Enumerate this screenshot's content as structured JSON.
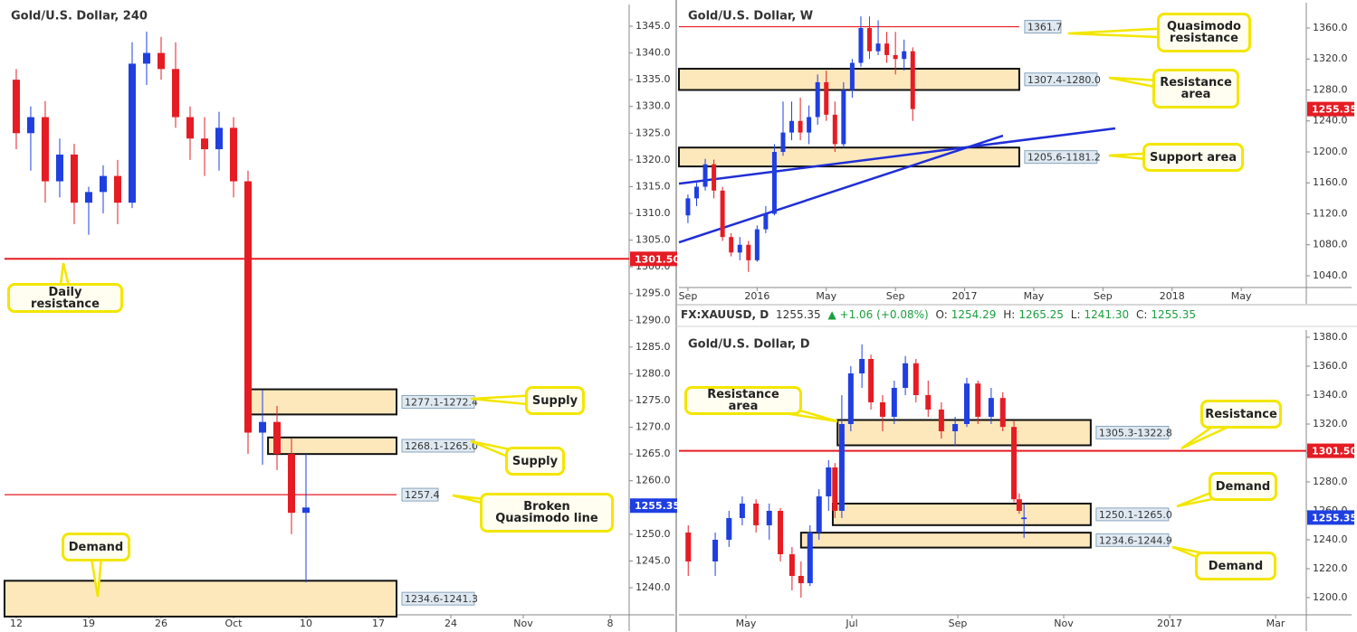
{
  "chart_data": [
    {
      "type": "candlestick",
      "title": "Gold/U.S. Dollar, 240",
      "up_color": "#1f3fe0",
      "down_color": "#e51c23",
      "xlim": [
        -0.81,
        42.31
      ],
      "ylim": [
        1234.93,
        1349.06
      ],
      "xticks": [
        {
          "value": 0,
          "label": "12"
        },
        {
          "value": 5,
          "label": "19"
        },
        {
          "value": 10,
          "label": "26"
        },
        {
          "value": 15,
          "label": "Oct"
        },
        {
          "value": 20,
          "label": "10"
        },
        {
          "value": 25,
          "label": "17"
        },
        {
          "value": 30,
          "label": "24"
        },
        {
          "value": 35,
          "label": "Nov"
        },
        {
          "value": 41,
          "label": "8"
        }
      ],
      "yticks": [
        {
          "value": 1240,
          "label": "1240.0"
        },
        {
          "value": 1245,
          "label": "1245.0"
        },
        {
          "value": 1250,
          "label": "1250.0"
        },
        {
          "value": 1255,
          "label": "1255.0"
        },
        {
          "value": 1260,
          "label": "1260.0"
        },
        {
          "value": 1265,
          "label": "1265.0"
        },
        {
          "value": 1270,
          "label": "1270.0"
        },
        {
          "value": 1275,
          "label": "1275.0"
        },
        {
          "value": 1280,
          "label": "1280.0"
        },
        {
          "value": 1285,
          "label": "1285.0"
        },
        {
          "value": 1290,
          "label": "1290.0"
        },
        {
          "value": 1295,
          "label": "1295.0"
        },
        {
          "value": 1300,
          "label": "1300.0"
        },
        {
          "value": 1305,
          "label": "1305.0"
        },
        {
          "value": 1310,
          "label": "1310.0"
        },
        {
          "value": 1315,
          "label": "1315.0"
        },
        {
          "value": 1320,
          "label": "1320.0"
        },
        {
          "value": 1325,
          "label": "1325.0"
        },
        {
          "value": 1330,
          "label": "1330.0"
        },
        {
          "value": 1335,
          "label": "1335.0"
        },
        {
          "value": 1340,
          "label": "1340.0"
        },
        {
          "value": 1345,
          "label": "1345.0"
        }
      ],
      "x": [
        0,
        1,
        2,
        3,
        4,
        5,
        6,
        7,
        8,
        9,
        10,
        11,
        12,
        13,
        14,
        15,
        16,
        17,
        18,
        19,
        20
      ],
      "open": [
        1335,
        1325,
        1328,
        1316,
        1321,
        1312,
        1314,
        1317,
        1312,
        1338,
        1340,
        1337,
        1328,
        1324,
        1322,
        1326,
        1316,
        1269,
        1271,
        1265,
        1254
      ],
      "high": [
        1337,
        1330,
        1331,
        1324,
        1323,
        1315,
        1319,
        1320,
        1342,
        1344,
        1343,
        1342,
        1330,
        1328,
        1329,
        1328,
        1318,
        1277,
        1274,
        1268,
        1265
      ],
      "low": [
        1322,
        1318,
        1312,
        1313,
        1308,
        1306,
        1310,
        1308,
        1311,
        1334,
        1335,
        1326,
        1320,
        1317,
        1318,
        1313,
        1265,
        1263,
        1262,
        1250,
        1241
      ],
      "close": [
        1325,
        1328,
        1316,
        1321,
        1312,
        1314,
        1317,
        1312,
        1338,
        1340,
        1337,
        1328,
        1324,
        1322,
        1326,
        1316,
        1269,
        1271,
        1265,
        1254,
        1255
      ],
      "zones": [
        {
          "label": "1277.1-1272.4",
          "high": 1277.1,
          "low": 1272.4,
          "x": [
            16.19,
            26.25
          ]
        },
        {
          "label": "1268.1-1265.0",
          "high": 1268.1,
          "low": 1265,
          "x": [
            17.38,
            26.25
          ]
        },
        {
          "label": "1234.6-1241.3",
          "high": 1241.3,
          "low": 1234.6,
          "x": [
            -0.81,
            26.25
          ]
        }
      ],
      "levels": [
        {
          "value": 1301.5,
          "label": "1301.50",
          "color": "#e51c23",
          "style": "axis"
        },
        {
          "value": 1257.4,
          "label": "1257.4",
          "color": "#e51c23",
          "style": "box",
          "x_end": 26.25
        }
      ],
      "last_price": 1255.35,
      "last_price_color": "#1f3fe0",
      "callouts": [
        "Daily resistance",
        "Supply",
        "Supply",
        "Broken Quasimodo line",
        "Demand"
      ]
    },
    {
      "type": "candlestick",
      "title": "Gold/U.S. Dollar, W",
      "up_color": "#1f3fe0",
      "down_color": "#e51c23",
      "xlim": [
        -0.52,
        35.76
      ],
      "ylim": [
        1024.8,
        1392.7
      ],
      "xticks": [
        {
          "value": 0,
          "label": "Sep"
        },
        {
          "value": 4,
          "label": "2016"
        },
        {
          "value": 8,
          "label": "May"
        },
        {
          "value": 12,
          "label": "Sep"
        },
        {
          "value": 16,
          "label": "2017"
        },
        {
          "value": 20,
          "label": "May"
        },
        {
          "value": 24,
          "label": "Sep"
        },
        {
          "value": 28,
          "label": "2018"
        },
        {
          "value": 32,
          "label": "May"
        }
      ],
      "yticks": [
        {
          "value": 1040,
          "label": "1040.0"
        },
        {
          "value": 1080,
          "label": "1080.0"
        },
        {
          "value": 1120,
          "label": "1120.0"
        },
        {
          "value": 1160,
          "label": "1160.0"
        },
        {
          "value": 1200,
          "label": "1200.0"
        },
        {
          "value": 1240,
          "label": "1240.0"
        },
        {
          "value": 1280,
          "label": "1280.0"
        },
        {
          "value": 1320,
          "label": "1320.0"
        },
        {
          "value": 1360,
          "label": "1360.0"
        }
      ],
      "x": [
        0,
        0.5,
        1,
        1.5,
        2,
        2.5,
        3,
        3.5,
        4,
        4.5,
        5,
        5.5,
        6,
        6.5,
        7,
        7.5,
        8,
        8.5,
        9,
        9.5,
        10,
        10.5,
        11,
        11.5,
        12,
        12.5,
        13
      ],
      "open": [
        1118,
        1140,
        1155,
        1184,
        1150,
        1090,
        1070,
        1080,
        1060,
        1100,
        1120,
        1200,
        1225,
        1240,
        1225,
        1245,
        1290,
        1248,
        1210,
        1280,
        1315,
        1360,
        1330,
        1340,
        1325,
        1320,
        1330
      ],
      "high": [
        1145,
        1160,
        1191,
        1190,
        1155,
        1095,
        1090,
        1085,
        1105,
        1130,
        1210,
        1265,
        1265,
        1270,
        1260,
        1300,
        1305,
        1265,
        1290,
        1320,
        1375,
        1375,
        1370,
        1355,
        1355,
        1345,
        1335
      ],
      "low": [
        1108,
        1130,
        1150,
        1140,
        1085,
        1065,
        1060,
        1045,
        1058,
        1095,
        1118,
        1195,
        1215,
        1215,
        1210,
        1235,
        1240,
        1200,
        1205,
        1270,
        1310,
        1320,
        1325,
        1315,
        1300,
        1305,
        1240
      ],
      "close": [
        1140,
        1155,
        1184,
        1150,
        1090,
        1070,
        1080,
        1060,
        1100,
        1120,
        1200,
        1225,
        1240,
        1225,
        1245,
        1290,
        1248,
        1210,
        1280,
        1315,
        1360,
        1330,
        1340,
        1325,
        1320,
        1330,
        1255.35
      ],
      "zones": [
        {
          "label": "1307.4-1280.0",
          "high": 1307.4,
          "low": 1280,
          "x": [
            -0.52,
            19.16
          ]
        },
        {
          "label": "1205.6-1181.2",
          "high": 1205.6,
          "low": 1181.2,
          "x": [
            -0.52,
            19.16
          ]
        }
      ],
      "levels": [
        {
          "value": 1361.7,
          "label": "1361.7",
          "color": "#e51c23",
          "style": "box",
          "x_end": 19.16
        }
      ],
      "trendlines": [
        {
          "x": [
            -0.52,
            24.71
          ],
          "y": [
            1159,
            1230.3
          ],
          "color": "#1f2ed6"
        },
        {
          "x": [
            -0.52,
            18.22
          ],
          "y": [
            1083.1,
            1221
          ],
          "color": "#1f2ed6"
        }
      ],
      "last_price": 1255.35,
      "last_price_color": "#e51c23",
      "callouts": [
        "Quasimodo resistance",
        "Resistance area",
        "Support area"
      ]
    },
    {
      "type": "candlestick",
      "title": "Gold/U.S. Dollar, D",
      "up_color": "#1f3fe0",
      "down_color": "#e51c23",
      "xlim": [
        2.735,
        14.58
      ],
      "ylim": [
        1188.1,
        1385
      ],
      "xticks": [
        {
          "value": 4,
          "label": "May"
        },
        {
          "value": 6,
          "label": "Jul"
        },
        {
          "value": 8,
          "label": "Sep"
        },
        {
          "value": 10,
          "label": "Nov"
        },
        {
          "value": 12,
          "label": "2017"
        },
        {
          "value": 14,
          "label": "Mar"
        }
      ],
      "yticks": [
        {
          "value": 1200,
          "label": "1200.0"
        },
        {
          "value": 1220,
          "label": "1220.0"
        },
        {
          "value": 1240,
          "label": "1240.0"
        },
        {
          "value": 1260,
          "label": "1260.0"
        },
        {
          "value": 1280,
          "label": "1280.0"
        },
        {
          "value": 1300,
          "label": "1300.0"
        },
        {
          "value": 1320,
          "label": "1320.0"
        },
        {
          "value": 1340,
          "label": "1340.0"
        },
        {
          "value": 1360,
          "label": "1360.0"
        },
        {
          "value": 1380,
          "label": "1380.0"
        }
      ],
      "x": [
        2.91,
        3.42,
        3.68,
        3.93,
        4.19,
        4.44,
        4.65,
        4.87,
        5.04,
        5.21,
        5.38,
        5.56,
        5.68,
        5.81,
        5.98,
        6.19,
        6.36,
        6.58,
        6.8,
        7.01,
        7.21,
        7.44,
        7.69,
        7.95,
        8.17,
        8.38,
        8.63,
        8.85,
        9.06,
        9.16,
        9.25
      ],
      "open": [
        1245,
        1225,
        1240,
        1255,
        1265,
        1250,
        1260,
        1230,
        1215,
        1210,
        1245,
        1270,
        1290,
        1260,
        1320,
        1355,
        1365,
        1335,
        1325,
        1345,
        1362,
        1340,
        1330,
        1315,
        1320,
        1348,
        1325,
        1338,
        1318,
        1268,
        1254.29
      ],
      "high": [
        1250,
        1245,
        1260,
        1270,
        1268,
        1265,
        1262,
        1235,
        1225,
        1250,
        1275,
        1295,
        1293,
        1340,
        1360,
        1375,
        1368,
        1340,
        1350,
        1367,
        1365,
        1350,
        1335,
        1325,
        1352,
        1350,
        1345,
        1342,
        1322,
        1272,
        1265.25
      ],
      "low": [
        1215,
        1215,
        1235,
        1250,
        1245,
        1240,
        1225,
        1205,
        1200,
        1208,
        1240,
        1260,
        1255,
        1255,
        1315,
        1345,
        1330,
        1315,
        1320,
        1340,
        1335,
        1325,
        1310,
        1305,
        1318,
        1320,
        1320,
        1315,
        1266,
        1258,
        1241.3
      ],
      "close": [
        1225,
        1240,
        1255,
        1265,
        1250,
        1260,
        1230,
        1215,
        1210,
        1245,
        1270,
        1290,
        1260,
        1320,
        1355,
        1365,
        1335,
        1325,
        1345,
        1362,
        1340,
        1330,
        1315,
        1320,
        1348,
        1325,
        1338,
        1318,
        1268,
        1260,
        1255.35
      ],
      "zones": [
        {
          "label": "1305.3-1322.8",
          "high": 1322.8,
          "low": 1305.3,
          "x": [
            5.73,
            10.51
          ]
        },
        {
          "label": "1250.1-1265.0",
          "high": 1265,
          "low": 1250.1,
          "x": [
            5.64,
            10.51
          ]
        },
        {
          "label": "1234.6-1244.9",
          "high": 1244.9,
          "low": 1234.6,
          "x": [
            5.04,
            10.51
          ]
        }
      ],
      "levels": [
        {
          "value": 1301.5,
          "label": "1301.50",
          "color": "#e51c23",
          "style": "axis"
        }
      ],
      "last_price": 1255.35,
      "last_price_color": "#1f3fe0",
      "callouts": [
        "Resistance area",
        "Resistance",
        "Demand",
        "Demand"
      ]
    }
  ],
  "info_bar": {
    "symbol": "FX:XAUUSD, D",
    "price": "1255.35",
    "change": "▲ +1.06 (+0.08%)",
    "ohlc": [
      {
        "label": "O:",
        "value": "1254.29"
      },
      {
        "label": "H:",
        "value": "1265.25"
      },
      {
        "label": "L:",
        "value": "1241.30"
      },
      {
        "label": "C:",
        "value": "1255.35"
      }
    ]
  }
}
